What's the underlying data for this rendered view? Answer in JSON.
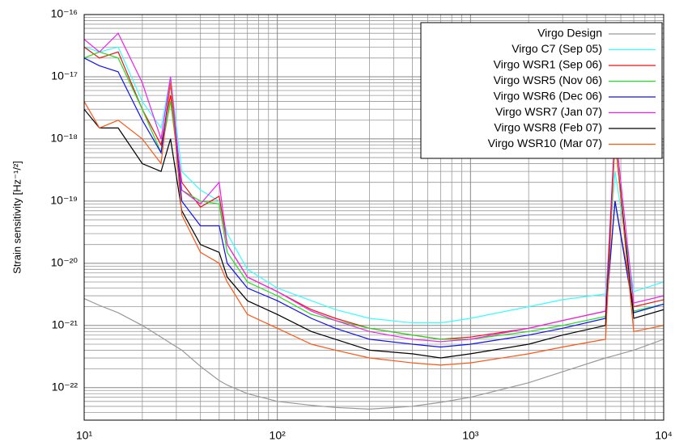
{
  "chart_data": {
    "type": "line",
    "y_label": "Strain sensitivity [Hz⁻¹/²]",
    "xlog": true,
    "ylog": true,
    "grid": true,
    "legend": "upper right",
    "xlim": [
      10,
      10000
    ],
    "ylim": [
      3e-23,
      1e-16
    ],
    "xticks": [
      {
        "value": 10,
        "label": "10¹"
      },
      {
        "value": 100,
        "label": "10²"
      },
      {
        "value": 1000,
        "label": "10³"
      },
      {
        "value": 10000,
        "label": "10⁴"
      }
    ],
    "yticks": [
      {
        "value": 1e-22,
        "label": "10⁻²²"
      },
      {
        "value": 1e-21,
        "label": "10⁻²¹"
      },
      {
        "value": 1e-20,
        "label": "10⁻²⁰"
      },
      {
        "value": 1e-19,
        "label": "10⁻¹⁹"
      },
      {
        "value": 1e-18,
        "label": "10⁻¹⁸"
      },
      {
        "value": 1e-17,
        "label": "10⁻¹⁷"
      },
      {
        "value": 1e-16,
        "label": "10⁻¹⁶"
      }
    ],
    "xminorticks": [
      20,
      30,
      40,
      50,
      60,
      70,
      80,
      90,
      200,
      300,
      400,
      500,
      600,
      700,
      800,
      900,
      2000,
      3000,
      4000,
      5000,
      6000,
      7000,
      8000,
      9000
    ],
    "yminorticks": [
      3e-23,
      4e-23,
      5e-23,
      6e-23,
      7e-23,
      8e-23,
      9e-23,
      2e-22,
      3e-22,
      4e-22,
      5e-22,
      6e-22,
      7e-22,
      8e-22,
      9e-22,
      2e-21,
      3e-21,
      4e-21,
      5e-21,
      6e-21,
      7e-21,
      8e-21,
      9e-21,
      2e-20,
      3e-20,
      4e-20,
      5e-20,
      6e-20,
      7e-20,
      8e-20,
      9e-20,
      2e-19,
      3e-19,
      4e-19,
      5e-19,
      6e-19,
      7e-19,
      8e-19,
      9e-19,
      2e-18,
      3e-18,
      4e-18,
      5e-18,
      6e-18,
      7e-18,
      8e-18,
      9e-18,
      2e-17,
      3e-17,
      4e-17,
      5e-17,
      6e-17,
      7e-17,
      8e-17,
      9e-17
    ],
    "x": [
      10,
      12,
      15,
      20,
      25,
      28,
      32,
      40,
      50,
      55,
      70,
      100,
      150,
      200,
      300,
      500,
      700,
      1000,
      2000,
      3000,
      5000,
      5600,
      7000,
      10000
    ],
    "series": [
      {
        "name": "Virgo Design",
        "color": "#999999",
        "values": [
          2.7e-21,
          2.1e-21,
          1.6e-21,
          1e-21,
          6.5e-22,
          5.2e-22,
          4e-22,
          2.2e-22,
          1.3e-22,
          1.1e-22,
          8e-23,
          6e-23,
          5.2e-23,
          4.8e-23,
          4.5e-23,
          5e-23,
          5.8e-23,
          7e-23,
          1.2e-22,
          1.8e-22,
          3e-22,
          3.3e-22,
          4e-22,
          6e-22
        ]
      },
      {
        "name": "Virgo C7 (Sep 05)",
        "color": "#33ffff",
        "values": [
          3e-17,
          2.5e-17,
          3e-17,
          4e-18,
          1.5e-18,
          1e-17,
          3e-19,
          1.5e-19,
          1e-19,
          3e-20,
          8e-21,
          4e-21,
          2.5e-21,
          1.8e-21,
          1.3e-21,
          1.1e-21,
          1.1e-21,
          1.3e-21,
          2e-21,
          2.6e-21,
          3.2e-21,
          3e-19,
          3.5e-21,
          5e-21
        ]
      },
      {
        "name": "Virgo WSR1 (Sep 06)",
        "color": "#ee1111",
        "values": [
          3e-17,
          2e-17,
          2.5e-17,
          3e-18,
          8e-19,
          5e-18,
          2e-19,
          8e-20,
          1.2e-19,
          2e-20,
          6e-21,
          3.5e-21,
          1.8e-21,
          1.3e-21,
          9e-22,
          7e-22,
          6e-22,
          6.5e-22,
          9e-22,
          1.2e-21,
          1.7e-21,
          1e-19,
          2e-21,
          2.6e-21
        ]
      },
      {
        "name": "Virgo WSR5 (Nov 06)",
        "color": "#22dd22",
        "values": [
          2e-17,
          2.5e-17,
          2e-17,
          3e-18,
          6e-19,
          4e-18,
          1.5e-19,
          1e-19,
          9e-20,
          1.5e-20,
          5e-21,
          3e-21,
          1.5e-21,
          1.2e-21,
          9e-22,
          7e-22,
          6e-22,
          6e-22,
          8e-22,
          1e-21,
          1.4e-21,
          1e-19,
          1.7e-21,
          2.2e-21
        ]
      },
      {
        "name": "Virgo WSR6 (Dec 06)",
        "color": "#1111ee",
        "values": [
          2e-17,
          1.5e-17,
          1.2e-17,
          2e-18,
          6e-19,
          8e-18,
          1e-19,
          4e-20,
          4e-20,
          1e-20,
          4e-21,
          2.5e-21,
          1.3e-21,
          9e-22,
          6e-22,
          5e-22,
          4.5e-22,
          5e-22,
          7e-22,
          9e-22,
          1.3e-21,
          1e-19,
          1.6e-21,
          2.2e-21
        ]
      },
      {
        "name": "Virgo WSR7 (Jan 07)",
        "color": "#ee22ee",
        "values": [
          4e-17,
          2.5e-17,
          5e-17,
          8e-18,
          1e-18,
          1e-17,
          1.5e-19,
          9e-20,
          2e-19,
          2e-20,
          6e-21,
          3.5e-21,
          1.7e-21,
          1.2e-21,
          8e-22,
          6e-22,
          5.5e-22,
          6e-22,
          9e-22,
          1.2e-21,
          1.7e-21,
          1.5e-18,
          2.3e-21,
          3e-21
        ]
      },
      {
        "name": "Virgo WSR8 (Feb 07)",
        "color": "#000000",
        "values": [
          3e-18,
          1.5e-18,
          1.5e-18,
          4e-19,
          3e-19,
          1e-18,
          7e-20,
          2e-20,
          1.5e-20,
          6e-21,
          2.5e-21,
          1.5e-21,
          8e-22,
          6e-22,
          4e-22,
          3.5e-22,
          3e-22,
          3.5e-22,
          5e-22,
          7e-22,
          1e-21,
          1e-18,
          1.3e-21,
          1.8e-21
        ]
      },
      {
        "name": "Virgo WSR10 (Mar 07)",
        "color": "#ff5511",
        "values": [
          4e-18,
          1.5e-18,
          2e-18,
          1e-18,
          4e-19,
          8e-18,
          6e-20,
          1.5e-20,
          1e-20,
          5e-21,
          1.5e-21,
          9e-22,
          5e-22,
          4e-22,
          3e-22,
          2.5e-22,
          2.3e-22,
          2.5e-22,
          3.5e-22,
          4.5e-22,
          6e-22,
          1e-18,
          8e-22,
          1e-21
        ]
      }
    ]
  }
}
